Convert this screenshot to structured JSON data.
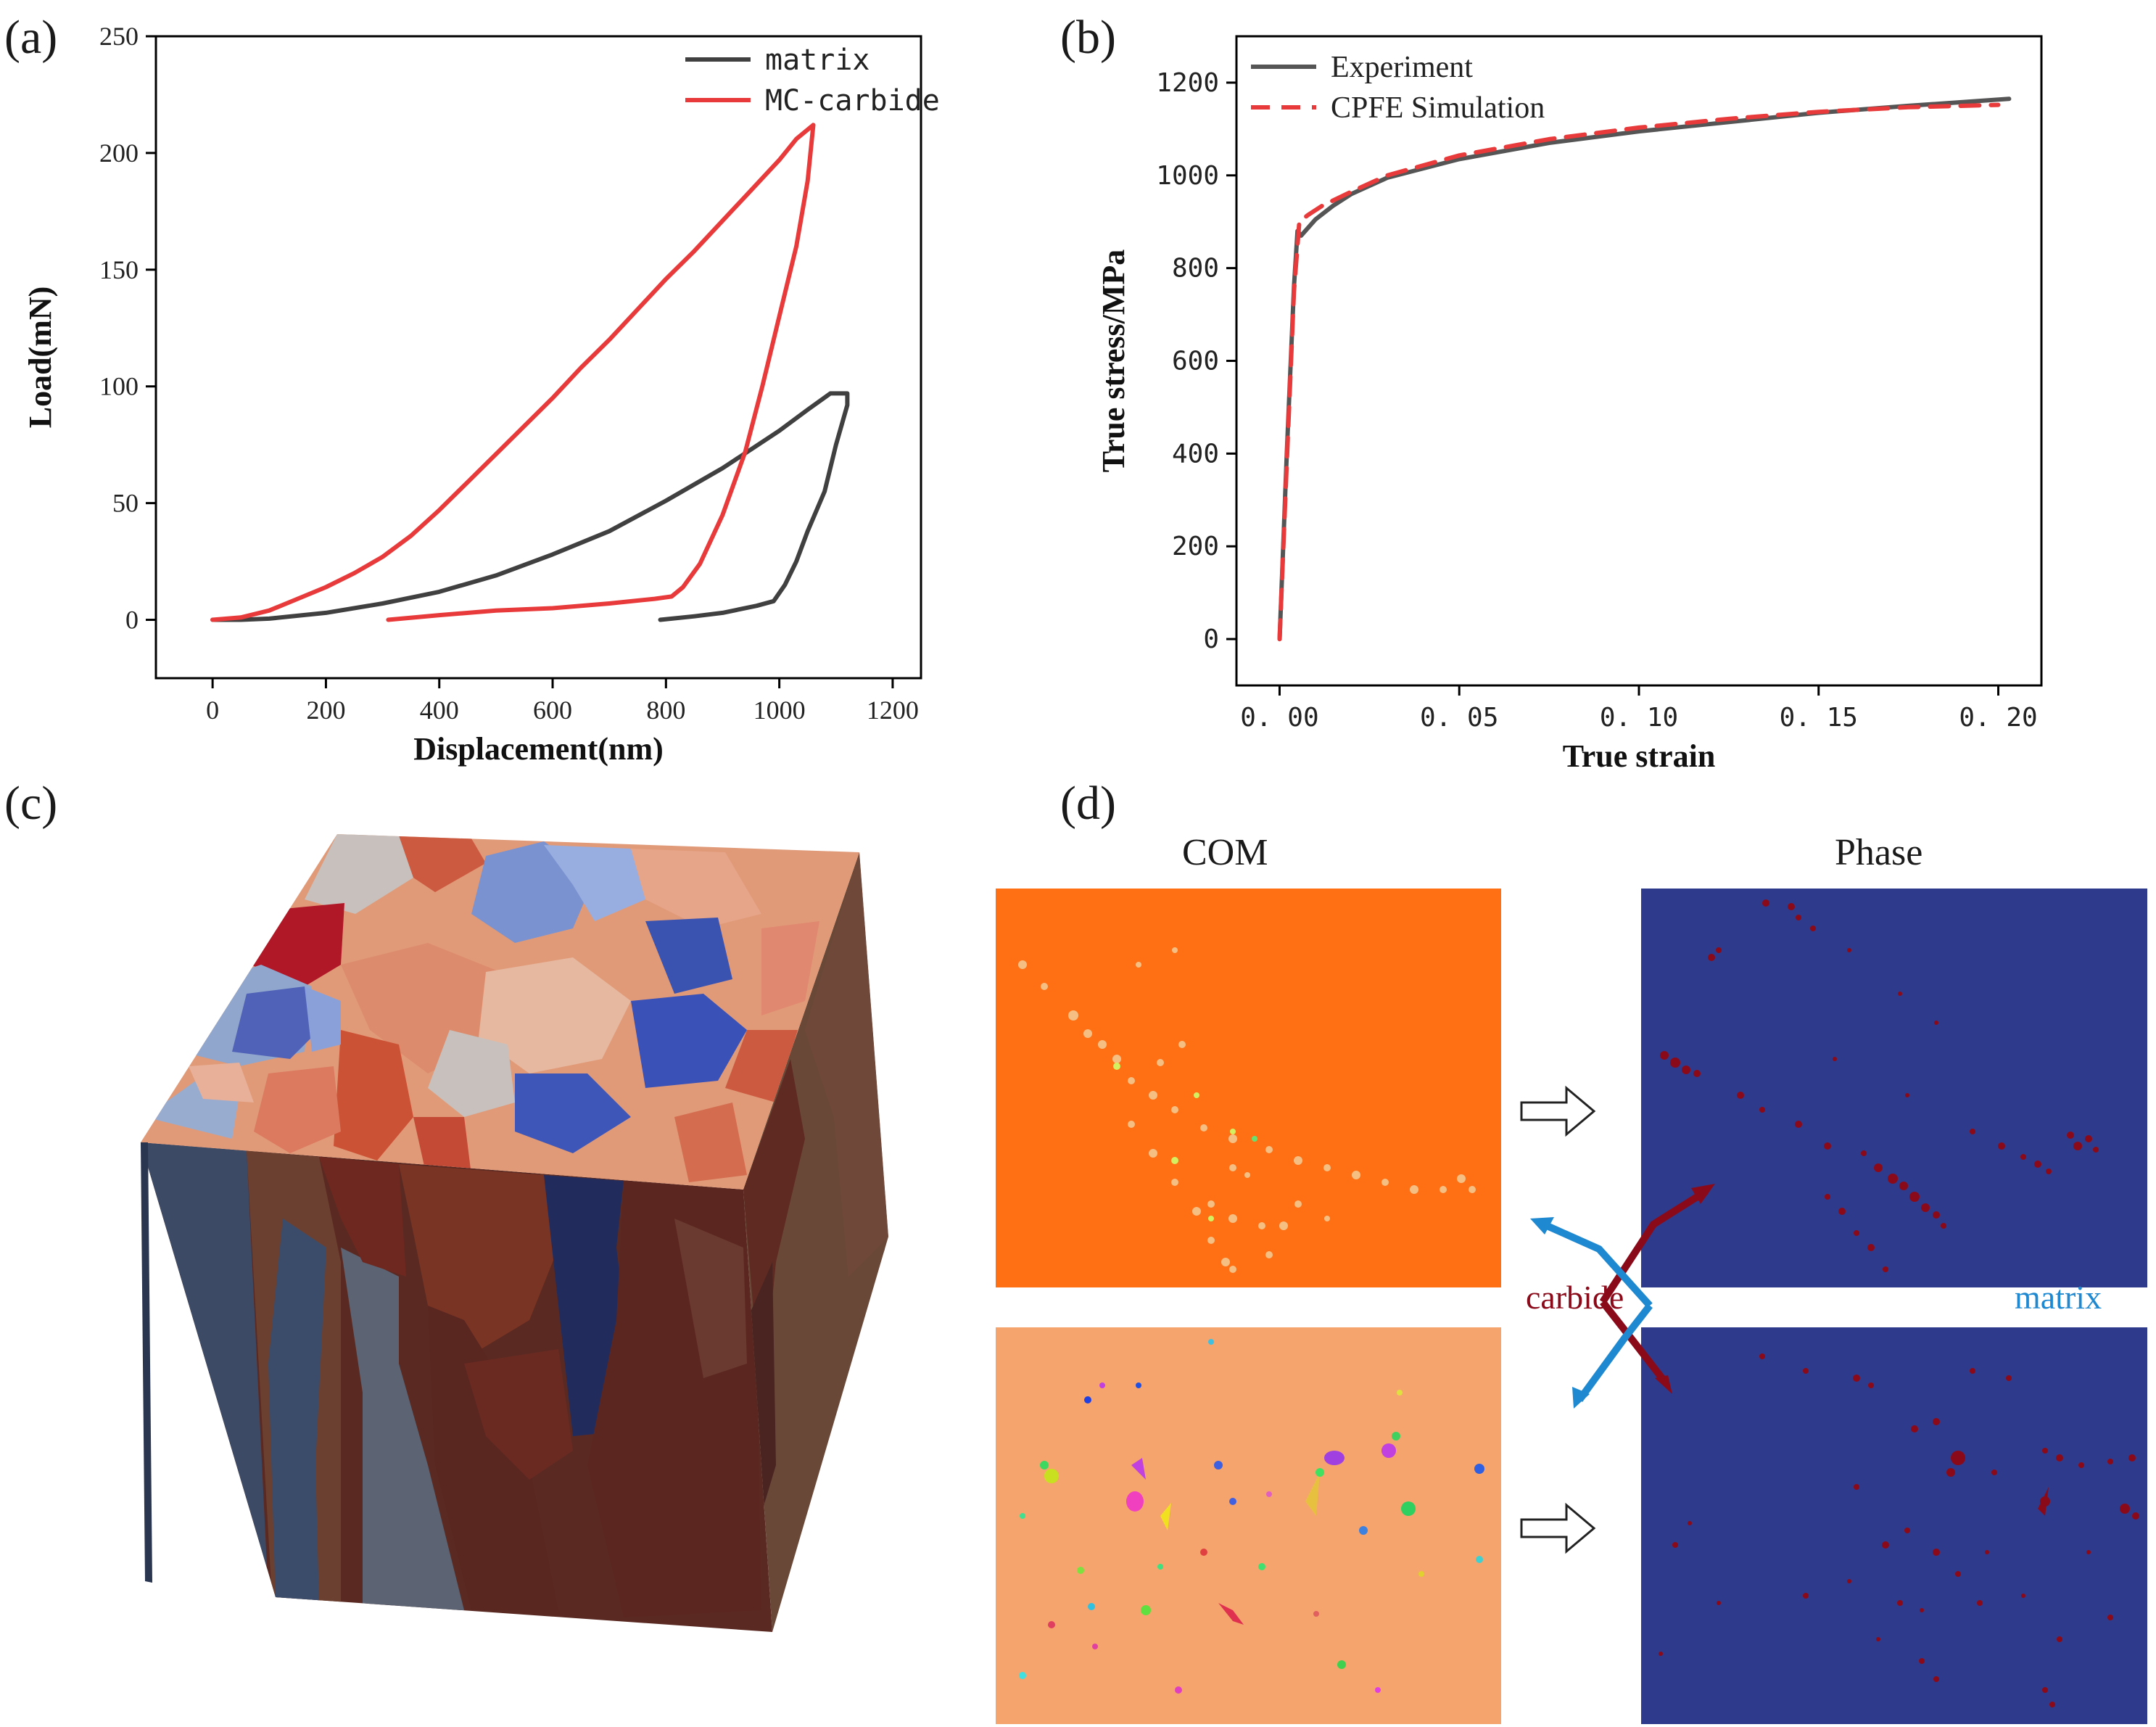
{
  "panels": {
    "a": "(a)",
    "b": "(b)",
    "c": "(c)",
    "d": "(d)"
  },
  "chart_data": [
    {
      "id": "a",
      "type": "line",
      "xlabel": "Displacement(nm)",
      "ylabel": "Load(mN)",
      "xlim": [
        -100,
        1250
      ],
      "ylim": [
        -25,
        250
      ],
      "xticks": [
        0,
        200,
        400,
        600,
        800,
        1000,
        1200
      ],
      "yticks": [
        0,
        50,
        100,
        150,
        200,
        250
      ],
      "legend_position": "top-right",
      "series": [
        {
          "name": "matrix",
          "color": "#404040",
          "x": [
            0,
            50,
            100,
            200,
            300,
            400,
            500,
            600,
            700,
            800,
            900,
            1000,
            1050,
            1090,
            1120,
            1120,
            1100,
            1080,
            1050,
            1030,
            1010,
            990,
            960,
            900,
            850,
            790
          ],
          "y": [
            0,
            0,
            0.5,
            3,
            7,
            12,
            19,
            28,
            38,
            51,
            65,
            81,
            90,
            97,
            97,
            92,
            75,
            55,
            38,
            25,
            15,
            8,
            6,
            3,
            1.5,
            0
          ]
        },
        {
          "name": "MC-carbide",
          "color": "#e83a3a",
          "x": [
            0,
            50,
            100,
            150,
            200,
            250,
            300,
            350,
            400,
            450,
            500,
            550,
            600,
            650,
            700,
            750,
            800,
            850,
            900,
            950,
            1000,
            1030,
            1060,
            1060,
            1050,
            1030,
            1000,
            970,
            940,
            900,
            860,
            830,
            810,
            780,
            700,
            600,
            500,
            400,
            310
          ],
          "y": [
            0,
            1,
            4,
            9,
            14,
            20,
            27,
            36,
            47,
            59,
            71,
            83,
            95,
            108,
            120,
            133,
            146,
            158,
            171,
            184,
            197,
            206,
            212,
            212,
            188,
            160,
            130,
            100,
            72,
            45,
            24,
            14,
            10,
            9,
            7,
            5,
            4,
            2,
            0
          ]
        }
      ]
    },
    {
      "id": "b",
      "type": "line",
      "xlabel": "True strain",
      "ylabel": "True stress/MPa",
      "xlim": [
        -0.012,
        0.212
      ],
      "ylim": [
        -100,
        1300
      ],
      "xticks": [
        0,
        0.05,
        0.1,
        0.15,
        0.2
      ],
      "xtick_labels": [
        "0. 00",
        "0. 05",
        "0. 10",
        "0. 15",
        "0. 20"
      ],
      "yticks": [
        0,
        200,
        400,
        600,
        800,
        1000,
        1200
      ],
      "legend_position": "top-left",
      "series": [
        {
          "name": "Experiment",
          "color": "#555555",
          "dash": false,
          "x": [
            0,
            0.002,
            0.004,
            0.005,
            0.006,
            0.01,
            0.015,
            0.02,
            0.03,
            0.05,
            0.075,
            0.1,
            0.125,
            0.15,
            0.175,
            0.203
          ],
          "y": [
            0,
            400,
            760,
            880,
            870,
            905,
            935,
            960,
            995,
            1035,
            1070,
            1095,
            1115,
            1135,
            1150,
            1165
          ]
        },
        {
          "name": "CPFE Simulation",
          "color": "#e83a3a",
          "dash": true,
          "x": [
            0,
            0.002,
            0.004,
            0.0055,
            0.008,
            0.012,
            0.02,
            0.03,
            0.05,
            0.075,
            0.1,
            0.125,
            0.15,
            0.175,
            0.2
          ],
          "y": [
            0,
            380,
            750,
            900,
            915,
            935,
            965,
            1000,
            1043,
            1078,
            1103,
            1122,
            1137,
            1147,
            1152
          ]
        }
      ]
    }
  ],
  "panel_d": {
    "com_title": "COM",
    "phase_title": "Phase",
    "carbide_label": "carbide",
    "matrix_label": "matrix",
    "carbide_color": "#8b0a1a",
    "matrix_color": "#1e88d0",
    "phase_bg": "#2e3a8c",
    "com_top_bg": "#ff6f14",
    "com_bottom_bg": "#f6a46e"
  }
}
